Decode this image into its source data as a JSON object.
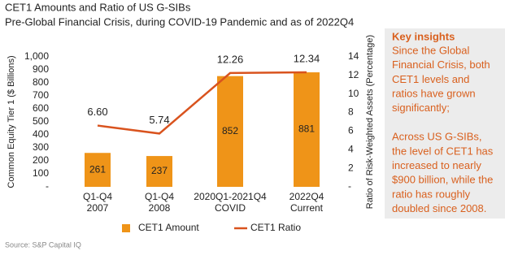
{
  "chart_data": {
    "type": "bar-line",
    "title": "CET1 Amounts and Ratio of US G-SIBs",
    "subtitle": "Pre-Global Financial Crisis, during COVID-19 Pandemic and as of 2022Q4",
    "ylabel": "Common Equity Tier 1 ($ Billions)",
    "y2label": "Ratio of Risk-Weighted Assets (Percentage)",
    "categories": [
      [
        "Q1-Q4",
        "2007"
      ],
      [
        "Q1-Q4",
        "2008"
      ],
      [
        "2020Q1-2021Q4",
        "COVID"
      ],
      [
        "2022Q4",
        "Current"
      ]
    ],
    "series": [
      {
        "name": "CET1 Amount",
        "type": "bar",
        "color": "#ef9418",
        "values": [
          261,
          237,
          852,
          881
        ]
      },
      {
        "name": "CET1 Ratio",
        "type": "line",
        "axis": "y2",
        "color": "#d9531e",
        "values": [
          6.6,
          5.74,
          12.26,
          12.34
        ],
        "value_labels": [
          "6.60",
          "5.74",
          "12.26",
          "12.34"
        ]
      }
    ],
    "ylim": [
      0,
      1000
    ],
    "yticks": [
      {
        "value": 0,
        "label": "-"
      },
      100,
      200,
      300,
      400,
      500,
      600,
      700,
      800,
      900,
      {
        "value": 1000,
        "label": "1,000"
      }
    ],
    "y2lim": [
      0,
      14
    ],
    "y2ticks": [
      {
        "value": 0,
        "label": "-"
      },
      2,
      4,
      6,
      8,
      10,
      12,
      14
    ]
  },
  "insights": {
    "title": "Key insights",
    "paragraphs": [
      [
        "Since the Global",
        "Financial Crisis, both",
        "CET1 levels and",
        "ratios have grown",
        "significantly;"
      ],
      [
        "Across US G-SIBs,",
        "the level of CET1 has",
        "increased to nearly",
        "$900 billion, while the",
        "ratio has roughly",
        "doubled since 2008."
      ]
    ]
  },
  "source": "Source: S&P Capital IQ"
}
